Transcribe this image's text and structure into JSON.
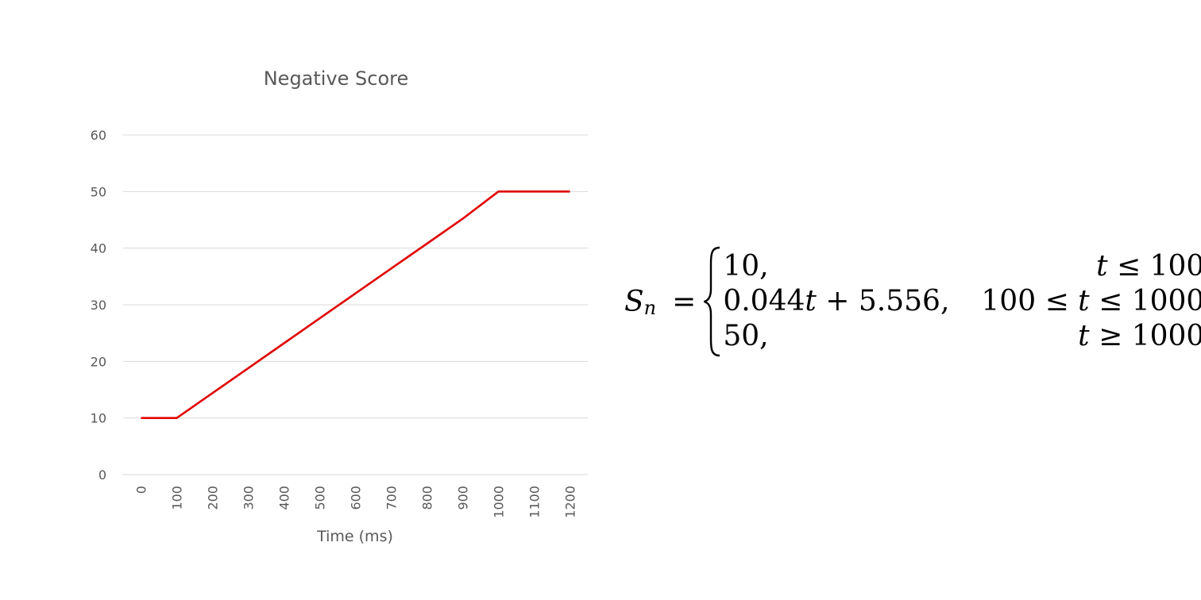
{
  "chart_data": {
    "type": "line",
    "title": "Negative Score",
    "xlabel": "Time (ms)",
    "ylabel": "",
    "categories": [
      "0",
      "100",
      "200",
      "300",
      "400",
      "500",
      "600",
      "700",
      "800",
      "900",
      "1000",
      "1100",
      "1200"
    ],
    "ylim": [
      0,
      60
    ],
    "yticks": [
      "0",
      "10",
      "20",
      "30",
      "40",
      "50",
      "60"
    ],
    "grid": true,
    "legend": "none",
    "series": [
      {
        "color": "#e00000",
        "values": [
          10,
          10,
          14.4,
          18.8,
          23.2,
          27.6,
          32.0,
          36.4,
          40.8,
          45.2,
          50,
          50,
          50
        ]
      }
    ]
  },
  "formula": {
    "lhs_var": "S",
    "lhs_sub": "n",
    "equals": "=",
    "rows": [
      {
        "expr": "10,",
        "cond": "t ≤ 100"
      },
      {
        "expr": "0.044t + 5.556,",
        "cond": "100 ≤ t ≤ 1000"
      },
      {
        "expr": "50,",
        "cond": "t ≥ 1000"
      }
    ]
  }
}
